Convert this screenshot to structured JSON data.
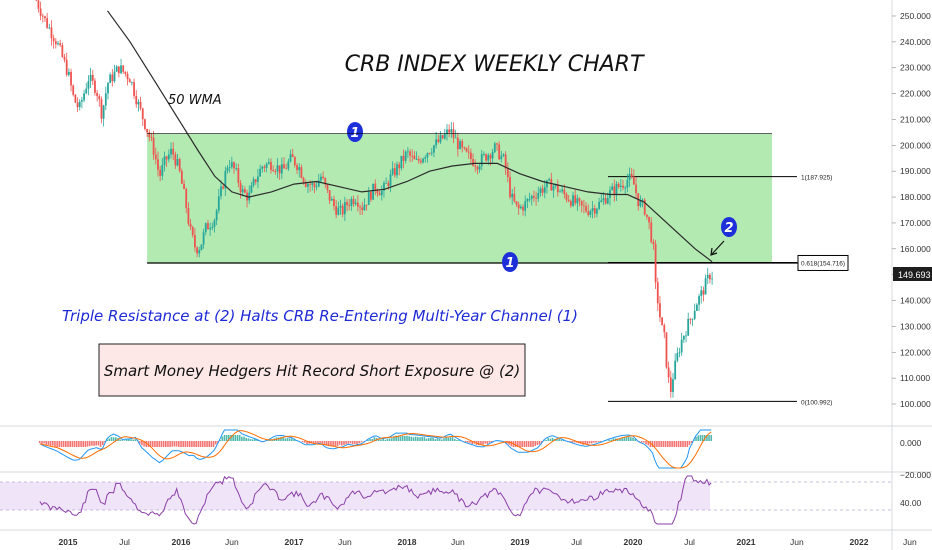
{
  "chart_data": {
    "type": "candlestick",
    "title": "CRB INDEX WEEKLY CHART",
    "ma_label": "50 WMA",
    "annotation_blue": "Triple Resistance at (2) Halts CRB Re-Entering Multi-Year Channel (1)",
    "annotation_box": "Smart Money Hedgers Hit Record Short Exposure @ (2)",
    "markers": [
      "1",
      "1",
      "2"
    ],
    "price_axis_labels": [
      "250.000",
      "240.000",
      "230.000",
      "220.000",
      "210.000",
      "200.000",
      "190.000",
      "180.000",
      "170.000",
      "160.000",
      "150.000",
      "140.000",
      "130.000",
      "120.000",
      "110.000",
      "100.000"
    ],
    "price_ylim": [
      96,
      257
    ],
    "last_price": "149.693",
    "channel": {
      "top": 204.5,
      "bottom": 154.5
    },
    "fib_levels": [
      {
        "label": "1(187.925)",
        "value": 187.925
      },
      {
        "label": "0.618(154.716)",
        "value": 154.716
      },
      {
        "label": "0(100.992)",
        "value": 100.992
      }
    ],
    "time_axis_labels": [
      "2015",
      "Jul",
      "2016",
      "Jun",
      "2017",
      "Jun",
      "2018",
      "Jun",
      "2019",
      "Jul",
      "2020",
      "Jul",
      "2021",
      "Jun",
      "2022",
      "Jun"
    ],
    "macd_axis_labels": [
      "0.000",
      "−20.000"
    ],
    "rsi_axis_labels": [
      "40.00"
    ],
    "price_path": [
      [
        2014.7,
        258
      ],
      [
        2014.8,
        248
      ],
      [
        2014.9,
        240
      ],
      [
        2015.0,
        228
      ],
      [
        2015.05,
        218
      ],
      [
        2015.1,
        214
      ],
      [
        2015.18,
        226
      ],
      [
        2015.25,
        222
      ],
      [
        2015.3,
        212
      ],
      [
        2015.35,
        224
      ],
      [
        2015.45,
        230
      ],
      [
        2015.55,
        226
      ],
      [
        2015.62,
        216
      ],
      [
        2015.7,
        206
      ],
      [
        2015.76,
        198
      ],
      [
        2015.81,
        188
      ],
      [
        2015.86,
        194
      ],
      [
        2015.92,
        198
      ],
      [
        2015.98,
        191
      ],
      [
        2016.04,
        178
      ],
      [
        2016.08,
        167
      ],
      [
        2016.13,
        160
      ],
      [
        2016.17,
        161
      ],
      [
        2016.22,
        168
      ],
      [
        2016.3,
        172
      ],
      [
        2016.36,
        183
      ],
      [
        2016.42,
        194
      ],
      [
        2016.48,
        190
      ],
      [
        2016.54,
        182
      ],
      [
        2016.6,
        180
      ],
      [
        2016.66,
        187
      ],
      [
        2016.72,
        192
      ],
      [
        2016.8,
        193
      ],
      [
        2016.9,
        190
      ],
      [
        2016.98,
        195
      ],
      [
        2017.04,
        192
      ],
      [
        2017.1,
        186
      ],
      [
        2017.18,
        184
      ],
      [
        2017.24,
        188
      ],
      [
        2017.3,
        181
      ],
      [
        2017.36,
        176
      ],
      [
        2017.42,
        174
      ],
      [
        2017.48,
        178
      ],
      [
        2017.55,
        180
      ],
      [
        2017.6,
        176
      ],
      [
        2017.66,
        180
      ],
      [
        2017.72,
        184
      ],
      [
        2017.78,
        182
      ],
      [
        2017.86,
        188
      ],
      [
        2017.94,
        193
      ],
      [
        2018.0,
        197
      ],
      [
        2018.08,
        193
      ],
      [
        2018.16,
        197
      ],
      [
        2018.24,
        200
      ],
      [
        2018.3,
        202
      ],
      [
        2018.38,
        206
      ],
      [
        2018.43,
        202
      ],
      [
        2018.5,
        197
      ],
      [
        2018.56,
        195
      ],
      [
        2018.62,
        193
      ],
      [
        2018.7,
        196
      ],
      [
        2018.78,
        199
      ],
      [
        2018.86,
        194
      ],
      [
        2018.92,
        180
      ],
      [
        2018.98,
        175
      ],
      [
        2019.04,
        177
      ],
      [
        2019.1,
        180
      ],
      [
        2019.16,
        182
      ],
      [
        2019.22,
        184
      ],
      [
        2019.28,
        185
      ],
      [
        2019.36,
        182
      ],
      [
        2019.42,
        180
      ],
      [
        2019.48,
        178
      ],
      [
        2019.54,
        176
      ],
      [
        2019.6,
        175
      ],
      [
        2019.66,
        176
      ],
      [
        2019.72,
        178
      ],
      [
        2019.78,
        181
      ],
      [
        2019.84,
        183
      ],
      [
        2019.9,
        185
      ],
      [
        2019.96,
        187
      ],
      [
        2020.0,
        186
      ],
      [
        2020.05,
        178
      ],
      [
        2020.1,
        176
      ],
      [
        2020.15,
        168
      ],
      [
        2020.18,
        160
      ],
      [
        2020.2,
        145
      ],
      [
        2020.22,
        140
      ],
      [
        2020.25,
        130
      ],
      [
        2020.28,
        125
      ],
      [
        2020.3,
        114
      ],
      [
        2020.33,
        104
      ],
      [
        2020.35,
        110
      ],
      [
        2020.4,
        120
      ],
      [
        2020.44,
        126
      ],
      [
        2020.48,
        130
      ],
      [
        2020.52,
        134
      ],
      [
        2020.56,
        139
      ],
      [
        2020.6,
        142
      ],
      [
        2020.64,
        146
      ],
      [
        2020.68,
        150
      ],
      [
        2020.7,
        149.693
      ]
    ],
    "wma_path": [
      [
        2015.35,
        252
      ],
      [
        2015.55,
        240
      ],
      [
        2015.75,
        226
      ],
      [
        2015.95,
        212
      ],
      [
        2016.15,
        198
      ],
      [
        2016.3,
        188
      ],
      [
        2016.45,
        182
      ],
      [
        2016.6,
        180
      ],
      [
        2016.8,
        182
      ],
      [
        2017.0,
        185
      ],
      [
        2017.2,
        186
      ],
      [
        2017.4,
        184
      ],
      [
        2017.6,
        182
      ],
      [
        2017.8,
        183
      ],
      [
        2018.0,
        186
      ],
      [
        2018.2,
        190
      ],
      [
        2018.4,
        192
      ],
      [
        2018.6,
        193
      ],
      [
        2018.8,
        193
      ],
      [
        2019.0,
        189
      ],
      [
        2019.2,
        186
      ],
      [
        2019.4,
        184
      ],
      [
        2019.6,
        182
      ],
      [
        2019.8,
        181
      ],
      [
        2019.95,
        181
      ],
      [
        2020.1,
        178
      ],
      [
        2020.25,
        172
      ],
      [
        2020.4,
        166
      ],
      [
        2020.55,
        160
      ],
      [
        2020.7,
        155
      ]
    ]
  }
}
